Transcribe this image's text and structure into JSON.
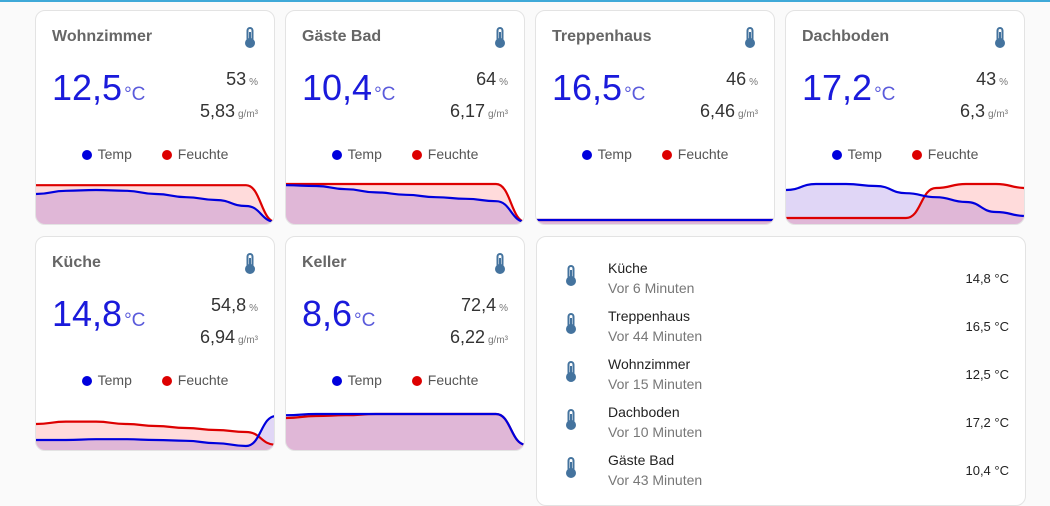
{
  "colors": {
    "temp": "#0000dd",
    "humidity": "#dd0000",
    "icon": "#44739e"
  },
  "legend": {
    "temp": "Temp",
    "humidity": "Feuchte"
  },
  "units": {
    "temp": "°C",
    "humidity": "%",
    "absolute": "g/m³"
  },
  "cards": [
    {
      "name": "Wohnzimmer",
      "temp": "12,5",
      "humidity": "53",
      "absolute": "5,83",
      "trend_temp": [
        70,
        78,
        80,
        78,
        70,
        62,
        55,
        40,
        0
      ],
      "trend_humidity": [
        92,
        92,
        92,
        92,
        92,
        92,
        92,
        92,
        0
      ]
    },
    {
      "name": "Gäste Bad",
      "temp": "10,4",
      "humidity": "64",
      "absolute": "6,17",
      "trend_temp": [
        92,
        90,
        82,
        74,
        68,
        62,
        58,
        52,
        0
      ],
      "trend_humidity": [
        95,
        95,
        95,
        95,
        95,
        95,
        95,
        95,
        0
      ]
    },
    {
      "name": "Treppenhaus",
      "temp": "16,5",
      "humidity": "46",
      "absolute": "6,46",
      "trend_temp": [
        5,
        5,
        5,
        5,
        5,
        5,
        5,
        5,
        5
      ],
      "trend_humidity": [
        5,
        5,
        5,
        5,
        5,
        5,
        5,
        5,
        5
      ]
    },
    {
      "name": "Dachboden",
      "temp": "17,2",
      "humidity": "43",
      "absolute": "6,3",
      "trend_temp": [
        80,
        95,
        95,
        90,
        72,
        62,
        50,
        25,
        15
      ],
      "trend_humidity": [
        10,
        10,
        10,
        10,
        10,
        85,
        95,
        95,
        85
      ]
    },
    {
      "name": "Küche",
      "temp": "14,8",
      "humidity": "54,8",
      "absolute": "6,94",
      "trend_temp": [
        20,
        20,
        22,
        22,
        20,
        18,
        12,
        5,
        80
      ],
      "trend_humidity": [
        60,
        66,
        66,
        60,
        55,
        50,
        45,
        40,
        8
      ]
    },
    {
      "name": "Keller",
      "temp": "8,6",
      "humidity": "72,4",
      "absolute": "6,22",
      "trend_temp": [
        82,
        85,
        85,
        85,
        85,
        85,
        85,
        85,
        8
      ],
      "trend_humidity": [
        75,
        80,
        82,
        85,
        85,
        85,
        85,
        85,
        8
      ]
    }
  ],
  "entities": [
    {
      "name": "Küche",
      "time": "Vor 6 Minuten",
      "value": "14,8 °C"
    },
    {
      "name": "Treppenhaus",
      "time": "Vor 44 Minuten",
      "value": "16,5 °C"
    },
    {
      "name": "Wohnzimmer",
      "time": "Vor 15 Minuten",
      "value": "12,5 °C"
    },
    {
      "name": "Dachboden",
      "time": "Vor 10 Minuten",
      "value": "17,2 °C"
    },
    {
      "name": "Gäste Bad",
      "time": "Vor 43 Minuten",
      "value": "10,4 °C"
    }
  ]
}
